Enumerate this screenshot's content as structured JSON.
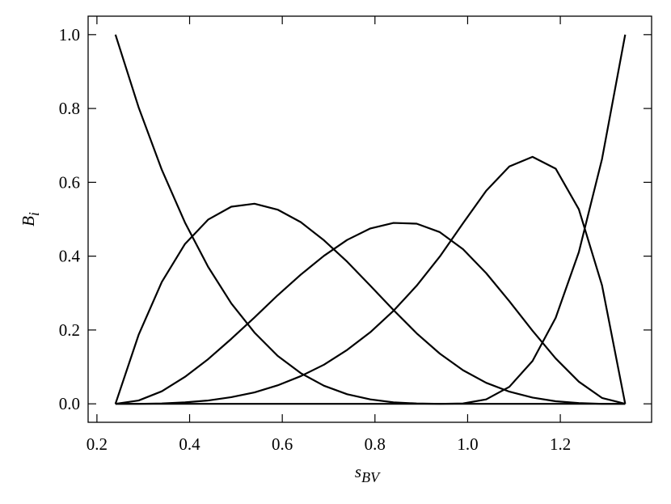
{
  "chart_data": {
    "type": "line",
    "xlabel": "s",
    "xlabel_sub": "BV",
    "ylabel": "B",
    "ylabel_sub": "i",
    "x": [
      0.24,
      0.29,
      0.34,
      0.39,
      0.44,
      0.49,
      0.54,
      0.59,
      0.64,
      0.69,
      0.74,
      0.79,
      0.84,
      0.89,
      0.94,
      0.99,
      1.04,
      1.09,
      1.14,
      1.19,
      1.24,
      1.29,
      1.34
    ],
    "series": [
      {
        "color": "#000000",
        "values": [
          1,
          0.803,
          0.634,
          0.491,
          0.371,
          0.272,
          0.193,
          0.13,
          0.083,
          0.049,
          0.026,
          0.012,
          0.004,
          0.001,
          0,
          0,
          0,
          0,
          0,
          0,
          0,
          0,
          0
        ]
      },
      {
        "color": "#000000",
        "values": [
          0,
          0.187,
          0.33,
          0.433,
          0.499,
          0.534,
          0.542,
          0.526,
          0.492,
          0.443,
          0.385,
          0.32,
          0.254,
          0.191,
          0.136,
          0.091,
          0.057,
          0.033,
          0.017,
          0.007,
          0.002,
          0,
          0
        ]
      },
      {
        "color": "#000000",
        "values": [
          0,
          0.009,
          0.034,
          0.073,
          0.121,
          0.176,
          0.234,
          0.294,
          0.35,
          0.401,
          0.444,
          0.475,
          0.49,
          0.488,
          0.465,
          0.419,
          0.354,
          0.278,
          0.198,
          0.123,
          0.06,
          0.016,
          0
        ]
      },
      {
        "color": "#000000",
        "values": [
          0,
          0,
          0.001,
          0.004,
          0.009,
          0.018,
          0.031,
          0.05,
          0.075,
          0.106,
          0.146,
          0.194,
          0.252,
          0.32,
          0.399,
          0.489,
          0.577,
          0.643,
          0.669,
          0.637,
          0.527,
          0.321,
          0
        ]
      },
      {
        "color": "#000000",
        "values": [
          0,
          0,
          0,
          0,
          0,
          0,
          0,
          0,
          0,
          0,
          0,
          0,
          0,
          0,
          0,
          0.001,
          0.012,
          0.046,
          0.116,
          0.233,
          0.411,
          0.663,
          1
        ]
      }
    ],
    "xlim": [
      0.181,
      1.397
    ],
    "ylim": [
      -0.05,
      1.05
    ],
    "xticks": [
      {
        "value": 0.2,
        "label": "0.2"
      },
      {
        "value": 0.4,
        "label": "0.4"
      },
      {
        "value": 0.6,
        "label": "0.6"
      },
      {
        "value": 0.8,
        "label": "0.8"
      },
      {
        "value": 1.0,
        "label": "1.0"
      },
      {
        "value": 1.2,
        "label": "1.2"
      }
    ],
    "yticks": [
      {
        "value": 0.0,
        "label": "0.0"
      },
      {
        "value": 0.2,
        "label": "0.2"
      },
      {
        "value": 0.4,
        "label": "0.4"
      },
      {
        "value": 0.6,
        "label": "0.6"
      },
      {
        "value": 0.8,
        "label": "0.8"
      },
      {
        "value": 1.0,
        "label": "1.0"
      }
    ]
  }
}
